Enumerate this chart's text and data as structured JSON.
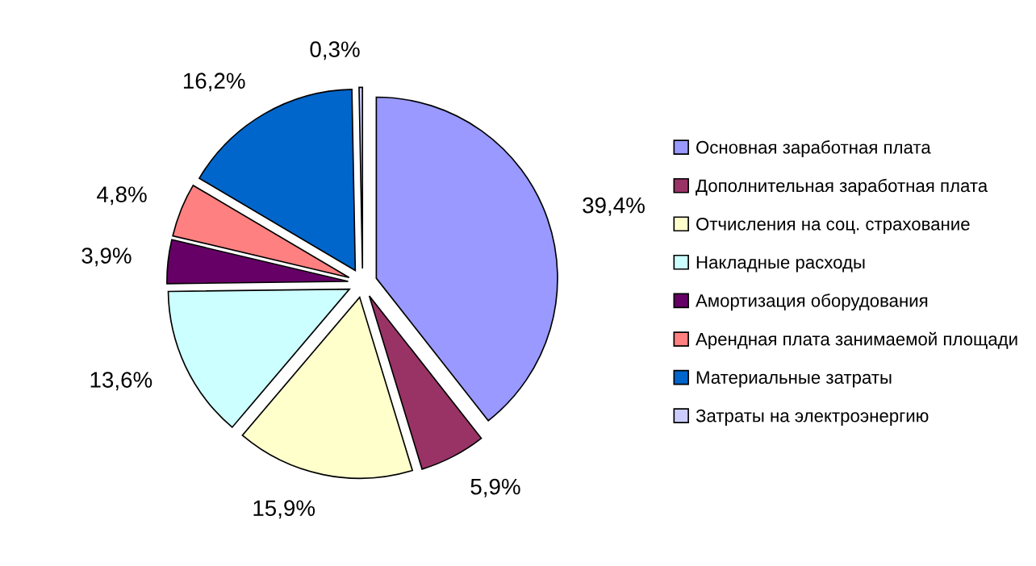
{
  "chart_data": {
    "type": "pie",
    "categories": [
      "Основная заработная плата",
      "Дополнительная заработная плата",
      "Отчисления на соц. страхование",
      "Накладные расходы",
      "Амортизация оборудования",
      "Арендная плата занимаемой площади",
      "Материальные затраты",
      "Затраты на электроэнергию"
    ],
    "values": [
      39.4,
      5.9,
      15.9,
      13.6,
      3.9,
      4.8,
      16.2,
      0.3
    ],
    "value_labels": [
      "39,4%",
      "5,9%",
      "15,9%",
      "13,6%",
      "3,9%",
      "4,8%",
      "16,2%",
      "0,3%"
    ],
    "colors": [
      "#9999ff",
      "#993366",
      "#ffffcc",
      "#ccffff",
      "#660066",
      "#ff8080",
      "#0066cc",
      "#ccccff"
    ],
    "legend": "right"
  }
}
